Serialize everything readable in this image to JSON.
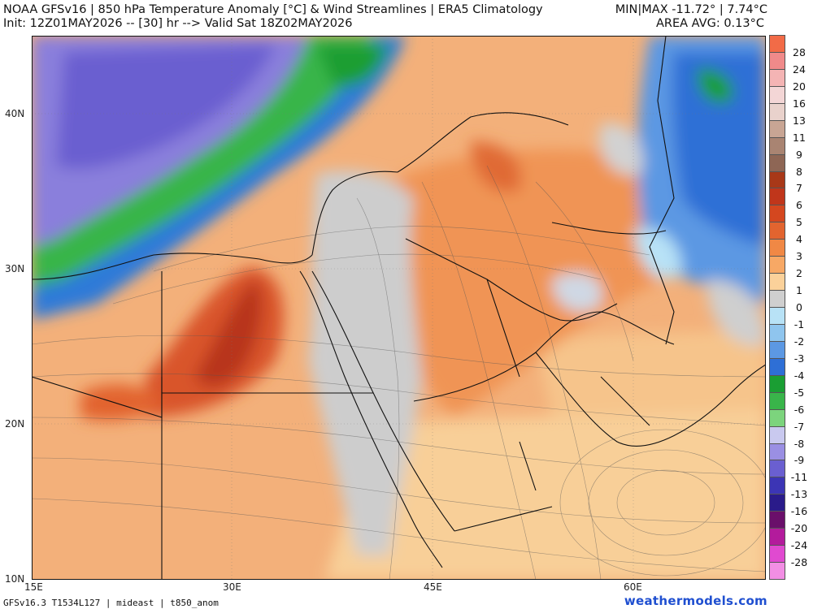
{
  "header": {
    "title": "NOAA GFSv16 | 850 hPa Temperature Anomaly [°C] & Wind Streamlines | ERA5 Climatology",
    "init_line": "Init: 12Z01MAY2026 -- [30] hr --> Valid Sat 18Z02MAY2026",
    "minmax": "MIN|MAX -11.72° | 7.74°C",
    "area_avg": "AREA AVG: 0.13°C"
  },
  "axes": {
    "lat_labels": [
      "40N",
      "30N",
      "20N",
      "10N"
    ],
    "lon_labels": [
      "15E",
      "30E",
      "45E",
      "60E"
    ]
  },
  "colorbar": {
    "labels": [
      "28",
      "24",
      "20",
      "16",
      "13",
      "11",
      "9",
      "8",
      "7",
      "6",
      "5",
      "4",
      "3",
      "2",
      "1",
      "0",
      "-1",
      "-2",
      "-3",
      "-4",
      "-5",
      "-6",
      "-7",
      "-8",
      "-9",
      "-11",
      "-13",
      "-16",
      "-20",
      "-24",
      "-28"
    ],
    "colors": [
      "#f26b47",
      "#f08a8a",
      "#f4b4b4",
      "#f3d6d6",
      "#e9d2cc",
      "#c8a594",
      "#a98472",
      "#8e6655",
      "#a83818",
      "#c0361b",
      "#d4471f",
      "#e2642f",
      "#f08845",
      "#f7a865",
      "#fbd19a",
      "#cfcfcf",
      "#b8e2f6",
      "#8fc5ee",
      "#5c98e3",
      "#2e6fd6",
      "#1a9e33",
      "#39b54a",
      "#7cd47d",
      "#c9c9ef",
      "#9a8fe3",
      "#6a5fd0",
      "#3c35b5",
      "#2a1b8a",
      "#6a0f6a",
      "#b31b9c",
      "#e04ad0",
      "#f28ee4"
    ]
  },
  "footer": {
    "model_code": "GFSv16.3 T1534L127 | mideast | t850_anom",
    "brand": "weathermodels.com"
  }
}
